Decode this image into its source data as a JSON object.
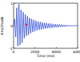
{
  "chart_data": {
    "type": "line",
    "x_label": "Time (ms)",
    "y_label": "Amplitude",
    "xlim": [
      0,
      6000
    ],
    "xticks": [
      0,
      2000,
      4000,
      6000
    ],
    "ylim": [
      -1,
      1
    ],
    "yticks": [
      -1,
      0,
      1
    ],
    "grid": false,
    "series": [
      {
        "type": "line",
        "color": "#2140d8",
        "x": [
          0,
          100,
          200,
          300,
          400,
          500,
          600,
          700,
          800,
          900,
          1000,
          1100,
          1200,
          1300,
          1400,
          1500,
          1600,
          1700,
          1800,
          1900,
          2000,
          2100,
          2200,
          2300,
          2400,
          2500,
          2600,
          2700,
          2800,
          2900,
          3000,
          3100,
          3200,
          3300,
          3400,
          3500,
          3600,
          3700,
          3800,
          3900,
          4000,
          4100,
          4200,
          4300,
          4400,
          4500,
          4600,
          4700,
          4800,
          4900,
          5000,
          5100,
          5200,
          5300,
          5400,
          5500,
          5600,
          5700,
          5800,
          5900,
          6000
        ],
        "values": [
          0,
          0.3,
          -0.5,
          0.8,
          -0.9,
          0.95,
          -0.85,
          0.7,
          -0.75,
          0.6,
          -0.55,
          0.5,
          -0.45,
          0.42,
          -0.4,
          0.35,
          -0.33,
          0.3,
          -0.28,
          0.26,
          -0.24,
          0.22,
          -0.2,
          0.19,
          -0.18,
          0.17,
          -0.16,
          0.15,
          -0.14,
          0.13,
          -0.12,
          0.12,
          -0.11,
          0.1,
          -0.1,
          0.09,
          -0.09,
          0.08,
          -0.08,
          0.07,
          -0.07,
          0.06,
          -0.06,
          0.06,
          -0.05,
          0.05,
          -0.05,
          0.04,
          -0.04,
          0.04,
          -0.03,
          0.03,
          -0.03,
          0.03,
          -0.02,
          0.02,
          -0.02,
          0.02,
          -0.01,
          0.01,
          0
        ]
      },
      {
        "type": "scatter",
        "color": "#ff0000",
        "marker": "circle",
        "x": [
          1200
        ],
        "values": [
          0.05
        ]
      }
    ]
  }
}
